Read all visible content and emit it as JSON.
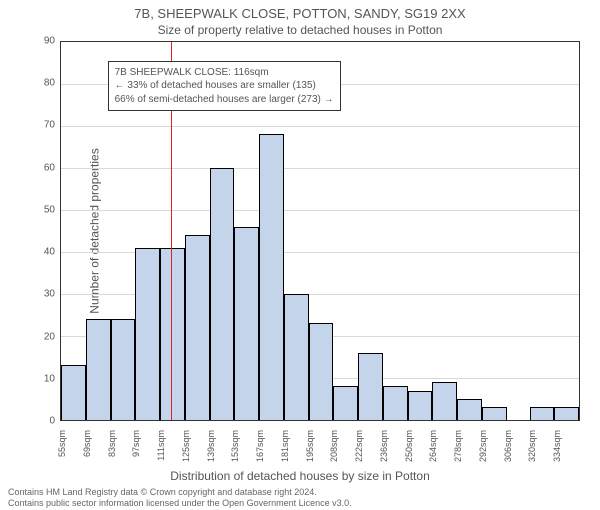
{
  "title_main": "7B, SHEEPWALK CLOSE, POTTON, SANDY, SG19 2XX",
  "title_sub": "Size of property relative to detached houses in Potton",
  "ylabel": "Number of detached properties",
  "xlabel": "Distribution of detached houses by size in Potton",
  "anno": {
    "line1": "7B SHEEPWALK CLOSE: 116sqm",
    "line2": "← 33% of detached houses are smaller (135)",
    "line3": "66% of semi-detached houses are larger (273) →",
    "left_pct": 9,
    "top_pct": 5
  },
  "chart": {
    "type": "histogram",
    "ylim_max": 90,
    "yticks": [
      0,
      10,
      20,
      30,
      40,
      50,
      60,
      70,
      80,
      90
    ],
    "bar_fill": "#c4d4ea",
    "bar_stroke": "#000000",
    "grid_color": "#d9d9d9",
    "ref_line_color": "#d22",
    "ref_line_pct": 21.3,
    "x_labels": [
      "55sqm",
      "69sqm",
      "83sqm",
      "97sqm",
      "111sqm",
      "125sqm",
      "139sqm",
      "153sqm",
      "167sqm",
      "181sqm",
      "195sqm",
      "208sqm",
      "222sqm",
      "236sqm",
      "250sqm",
      "264sqm",
      "278sqm",
      "292sqm",
      "306sqm",
      "320sqm",
      "334sqm"
    ],
    "values": [
      13,
      24,
      24,
      41,
      41,
      44,
      60,
      46,
      68,
      30,
      23,
      8,
      16,
      8,
      7,
      9,
      5,
      3,
      0,
      3,
      3
    ]
  },
  "footer": {
    "line1": "Contains HM Land Registry data © Crown copyright and database right 2024.",
    "line2": "Contains public sector information licensed under the Open Government Licence v3.0."
  }
}
